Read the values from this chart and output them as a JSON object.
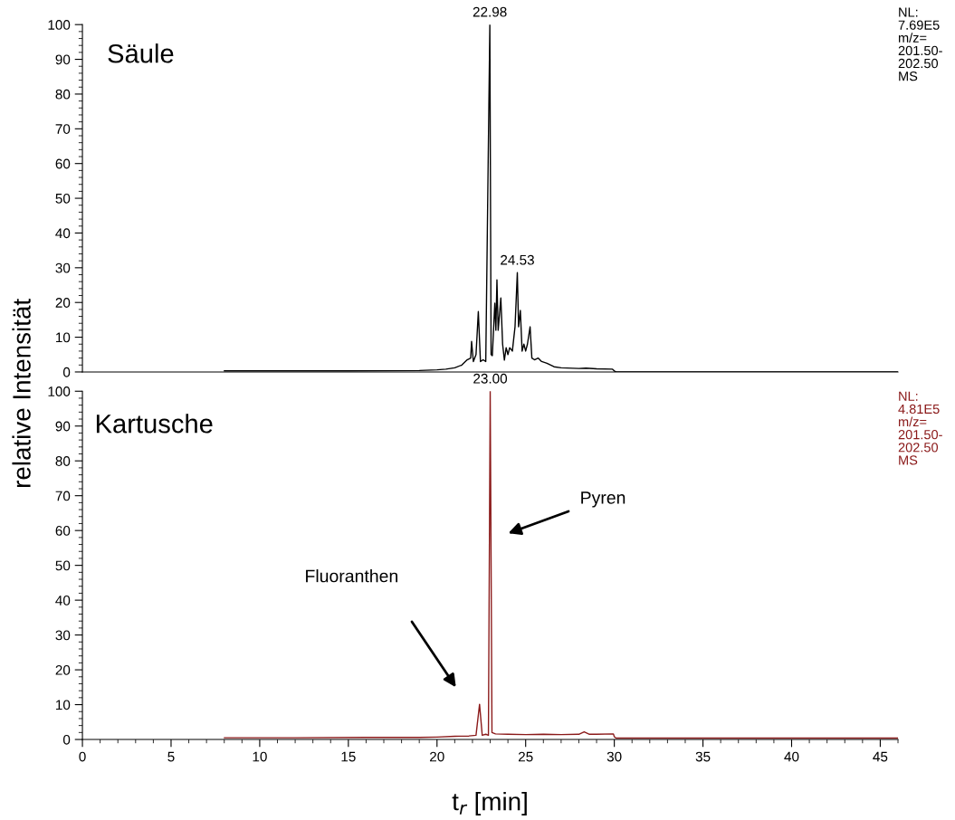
{
  "chart_data": [
    {
      "type": "line",
      "ylabel": "relative Intensität",
      "xlim": [
        0,
        46
      ],
      "ylim": [
        0,
        100
      ],
      "yticks": [
        0,
        10,
        20,
        30,
        40,
        50,
        60,
        70,
        80,
        90,
        100
      ],
      "tick_labels": "y",
      "series": [
        {
          "color": "#000000",
          "x": [
            8,
            15,
            19,
            20,
            20.5,
            21,
            21.4,
            21.7,
            21.9,
            21.95,
            22.05,
            22.2,
            22.33,
            22.45,
            22.6,
            22.75,
            22.98,
            23.05,
            23.12,
            23.26,
            23.32,
            23.38,
            23.45,
            23.6,
            23.7,
            23.8,
            23.9,
            24.0,
            24.1,
            24.25,
            24.4,
            24.53,
            24.6,
            24.7,
            24.8,
            24.9,
            25.0,
            25.1,
            25.25,
            25.35,
            25.5,
            25.7,
            25.9,
            26.2,
            26.6,
            27,
            28,
            28.4,
            29,
            29.9,
            30,
            30.1,
            46
          ],
          "values": [
            0.3,
            0.3,
            0.4,
            0.6,
            0.8,
            1.2,
            2,
            3.5,
            4,
            8.8,
            3,
            5,
            17.4,
            3,
            3.5,
            3,
            100,
            5,
            4.7,
            19.8,
            12,
            26.5,
            12,
            21.3,
            8,
            3.4,
            7,
            5,
            7,
            6,
            13,
            28.6,
            13,
            17.7,
            6,
            8,
            6,
            8,
            13,
            4,
            3.5,
            4,
            3,
            2.5,
            1.5,
            1.2,
            1,
            1.1,
            0.9,
            0.8,
            0.3,
            0,
            0
          ]
        }
      ],
      "annotations": [
        "Säule",
        "NL:\n7.69E5\nm/z=\n201.50-\n202.50\nMS",
        {
          "text": "22.98",
          "x": 22.98,
          "y": 100
        },
        {
          "text": "24.53",
          "x": 24.53,
          "y": 28.6
        }
      ]
    },
    {
      "type": "line",
      "xlabel": "t$_{r}$ [min]",
      "xlim": [
        0,
        46
      ],
      "ylim": [
        0,
        100
      ],
      "xticks": [
        0,
        5,
        10,
        15,
        20,
        25,
        30,
        35,
        40,
        45
      ],
      "yticks": [
        0,
        10,
        20,
        30,
        40,
        50,
        60,
        70,
        80,
        90,
        100
      ],
      "series": [
        {
          "color": "#8b1a1a",
          "x": [
            8,
            12,
            16,
            19,
            20,
            21,
            21.8,
            22.2,
            22.4,
            22.55,
            22.75,
            22.9,
            23.0,
            23.1,
            23.3,
            24,
            25,
            26,
            27,
            28,
            28.3,
            28.6,
            29,
            29.95,
            30,
            30.1,
            46
          ],
          "values": [
            0.5,
            0.5,
            0.6,
            0.6,
            0.7,
            0.9,
            1.0,
            1.2,
            10.1,
            1.2,
            1.5,
            1.2,
            100,
            2,
            1.6,
            1.5,
            1.4,
            1.5,
            1.4,
            1.5,
            2.2,
            1.5,
            1.5,
            1.6,
            0.8,
            0.4,
            0.4
          ]
        }
      ],
      "annotations": [
        "Kartusche",
        "NL:\n4.81E5\nm/z=\n201.50-\n202.50\nMS",
        {
          "text": "23.00",
          "x": 23.0,
          "y": 100
        },
        "Pyren",
        "Fluoranthen"
      ]
    }
  ]
}
